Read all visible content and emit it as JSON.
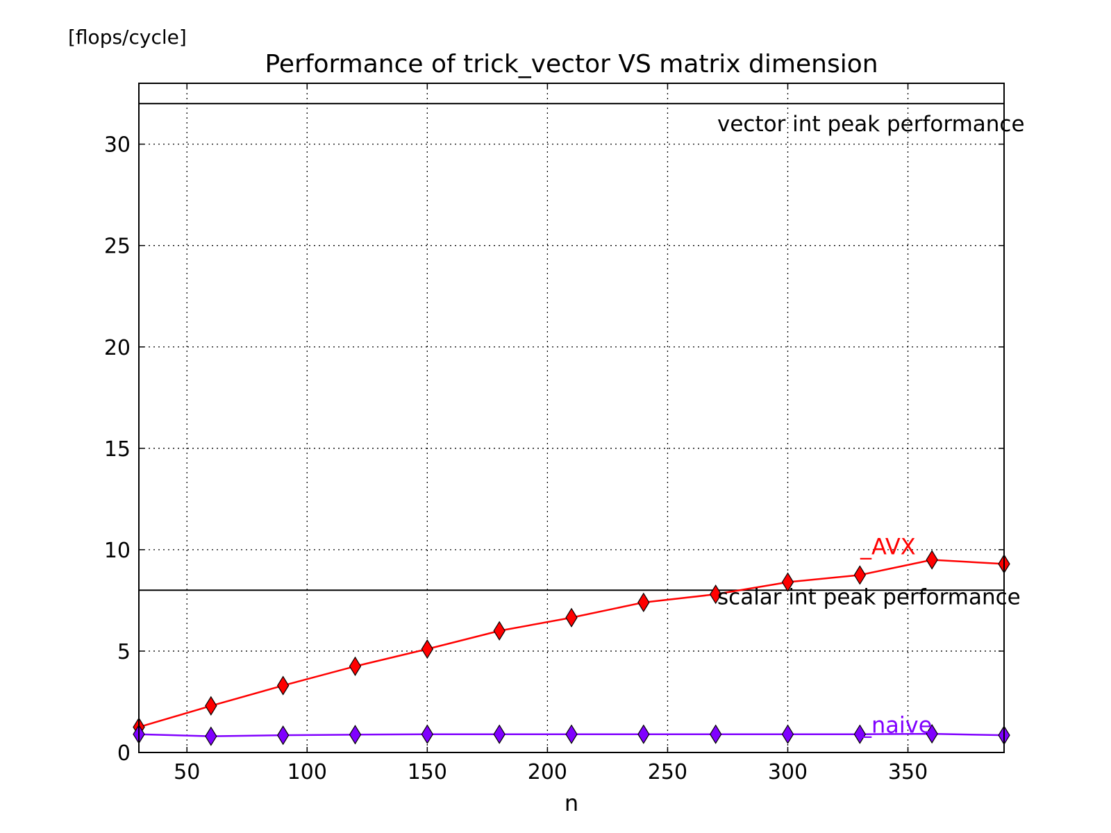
{
  "chart_data": {
    "type": "line",
    "title": "Performance of trick_vector VS matrix dimension",
    "xlabel": "n",
    "ylabel": "[flops/cycle]",
    "xlim": [
      30,
      390
    ],
    "ylim": [
      0,
      33
    ],
    "xticks": [
      50,
      100,
      150,
      200,
      250,
      300,
      350
    ],
    "yticks": [
      0,
      5,
      10,
      15,
      20,
      25,
      30
    ],
    "grid": true,
    "x": [
      30,
      60,
      90,
      120,
      150,
      180,
      210,
      240,
      270,
      300,
      330,
      360,
      390
    ],
    "series": [
      {
        "name": "_AVX",
        "color": "#ff0000",
        "marker": "diamond",
        "values": [
          1.25,
          2.3,
          3.3,
          4.25,
          5.1,
          6.0,
          6.65,
          7.4,
          7.8,
          8.4,
          8.75,
          9.5,
          9.3
        ]
      },
      {
        "name": "_naive",
        "color": "#8000ff",
        "marker": "diamond",
        "values": [
          0.9,
          0.8,
          0.85,
          0.88,
          0.9,
          0.9,
          0.9,
          0.9,
          0.9,
          0.9,
          0.9,
          0.92,
          0.85
        ]
      }
    ],
    "reference_lines": [
      {
        "label": "vector int peak performance",
        "y": 32,
        "color": "#000000"
      },
      {
        "label": "scalar int peak performance",
        "y": 8,
        "color": "#000000"
      }
    ]
  }
}
